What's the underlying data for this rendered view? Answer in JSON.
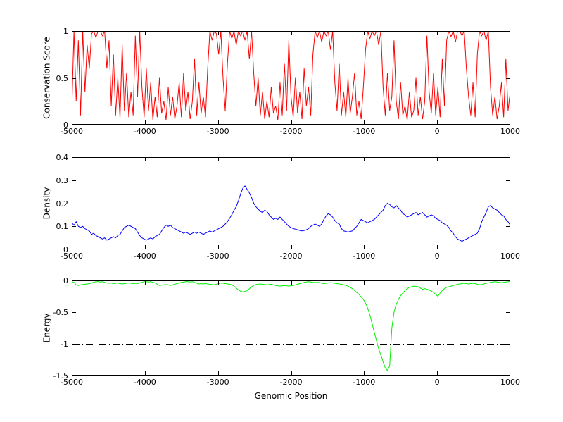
{
  "figure": {
    "background": "#ffffff",
    "axis_color": "#000000"
  },
  "chart_data": [
    {
      "type": "line",
      "title": "",
      "ylabel": "Conservation Score",
      "xlabel": "",
      "legend": null,
      "grid": false,
      "color": "#ff0000",
      "xlim": [
        -5000,
        1000
      ],
      "ylim": [
        0,
        1
      ],
      "xticks": [
        -5000,
        -4000,
        -3000,
        -2000,
        -1000,
        0,
        1000
      ],
      "x_tick_labels": [
        "-5000",
        "-4000",
        "-3000",
        "-2000",
        "-1000",
        "0",
        "1000"
      ],
      "yticks": [
        0,
        0.5,
        1
      ],
      "y_tick_labels": [
        "0",
        "0.5",
        "1"
      ],
      "x_start": -5000,
      "x_step": 30,
      "values": [
        0.15,
        1,
        0.25,
        0.9,
        0.1,
        1,
        0.35,
        0.85,
        0.6,
        0.97,
        1,
        0.93,
        1,
        1,
        0.95,
        1,
        0.6,
        0.9,
        0.2,
        0.75,
        0.1,
        0.5,
        0.07,
        0.85,
        0.15,
        0.55,
        0.08,
        0.35,
        0.1,
        0.95,
        0.3,
        1,
        0.4,
        0.08,
        0.6,
        0.15,
        0.45,
        0.05,
        0.3,
        0.08,
        0.5,
        0.12,
        0.25,
        0.05,
        0.4,
        0.1,
        0.3,
        0.06,
        0.2,
        0.45,
        0.08,
        0.55,
        0.15,
        0.35,
        0.06,
        0.25,
        0.7,
        0.1,
        0.45,
        0.12,
        0.3,
        0.08,
        0.6,
        1,
        0.9,
        1,
        0.97,
        0.75,
        1,
        0.5,
        0.15,
        0.65,
        1,
        0.92,
        1,
        0.85,
        1,
        0.95,
        1,
        0.9,
        1,
        0.7,
        1,
        0.55,
        0.2,
        0.5,
        0.1,
        0.35,
        0.06,
        0.25,
        0.08,
        0.4,
        0.12,
        0.2,
        0.05,
        0.45,
        0.1,
        0.65,
        0.15,
        0.9,
        0.3,
        0.08,
        0.5,
        0.12,
        0.35,
        0.06,
        0.6,
        0.2,
        0.4,
        0.1,
        0.75,
        1,
        0.93,
        1,
        0.88,
        1,
        0.95,
        1,
        0.8,
        1,
        0.45,
        0.15,
        0.65,
        0.1,
        0.35,
        0.08,
        0.5,
        0.12,
        0.3,
        0.55,
        0.1,
        0.25,
        0.06,
        0.4,
        0.8,
        1,
        0.92,
        1,
        0.95,
        1,
        0.85,
        1,
        0.4,
        0.1,
        0.55,
        0.15,
        0.3,
        0.9,
        0.25,
        0.06,
        0.45,
        0.1,
        0.2,
        0.05,
        0.35,
        0.08,
        0.15,
        0.5,
        0.1,
        0.3,
        0.06,
        0.25,
        0.95,
        0.35,
        0.12,
        0.55,
        0.1,
        0.4,
        0.08,
        0.7,
        0.2,
        0.9,
        1,
        0.94,
        1,
        0.88,
        1,
        1,
        0.95,
        1,
        0.6,
        0.3,
        0.1,
        0.45,
        0.08,
        0.75,
        1,
        0.95,
        1,
        0.9,
        1,
        0.4,
        0.1,
        0.3,
        0.06,
        0.2,
        0.45,
        0.08,
        0.7,
        0.15,
        0.35
      ]
    },
    {
      "type": "line",
      "title": "",
      "ylabel": "Density",
      "xlabel": "",
      "legend": null,
      "grid": false,
      "color": "#0000ff",
      "xlim": [
        -5000,
        1000
      ],
      "ylim": [
        0,
        0.4
      ],
      "xticks": [
        -5000,
        -4000,
        -3000,
        -2000,
        -1000,
        0,
        1000
      ],
      "x_tick_labels": [
        "-5000",
        "-4000",
        "-3000",
        "-2000",
        "-1000",
        "0",
        "1000"
      ],
      "yticks": [
        0,
        0.1,
        0.2,
        0.3,
        0.4
      ],
      "y_tick_labels": [
        "0",
        "0.1",
        "0.2",
        "0.3",
        "0.4"
      ],
      "x_start": -5000,
      "x_step": 30,
      "values": [
        0.115,
        0.105,
        0.12,
        0.1,
        0.095,
        0.1,
        0.09,
        0.085,
        0.08,
        0.065,
        0.07,
        0.06,
        0.055,
        0.05,
        0.045,
        0.05,
        0.04,
        0.045,
        0.05,
        0.055,
        0.05,
        0.06,
        0.065,
        0.08,
        0.095,
        0.1,
        0.105,
        0.1,
        0.095,
        0.09,
        0.075,
        0.06,
        0.05,
        0.045,
        0.04,
        0.045,
        0.05,
        0.045,
        0.055,
        0.06,
        0.065,
        0.08,
        0.095,
        0.105,
        0.1,
        0.105,
        0.095,
        0.09,
        0.085,
        0.08,
        0.075,
        0.07,
        0.075,
        0.07,
        0.065,
        0.07,
        0.075,
        0.07,
        0.075,
        0.07,
        0.065,
        0.07,
        0.075,
        0.08,
        0.075,
        0.08,
        0.085,
        0.09,
        0.095,
        0.1,
        0.11,
        0.12,
        0.135,
        0.15,
        0.17,
        0.185,
        0.21,
        0.24,
        0.265,
        0.275,
        0.26,
        0.245,
        0.225,
        0.2,
        0.185,
        0.175,
        0.165,
        0.16,
        0.17,
        0.165,
        0.15,
        0.14,
        0.13,
        0.135,
        0.13,
        0.14,
        0.13,
        0.12,
        0.11,
        0.1,
        0.095,
        0.09,
        0.088,
        0.085,
        0.082,
        0.08,
        0.082,
        0.085,
        0.09,
        0.1,
        0.105,
        0.11,
        0.105,
        0.1,
        0.11,
        0.13,
        0.145,
        0.155,
        0.15,
        0.14,
        0.125,
        0.115,
        0.11,
        0.09,
        0.08,
        0.078,
        0.075,
        0.078,
        0.08,
        0.09,
        0.1,
        0.115,
        0.13,
        0.125,
        0.12,
        0.115,
        0.12,
        0.125,
        0.13,
        0.14,
        0.15,
        0.16,
        0.17,
        0.19,
        0.2,
        0.195,
        0.185,
        0.18,
        0.19,
        0.18,
        0.17,
        0.155,
        0.15,
        0.14,
        0.145,
        0.15,
        0.155,
        0.16,
        0.15,
        0.155,
        0.16,
        0.15,
        0.14,
        0.145,
        0.15,
        0.145,
        0.135,
        0.13,
        0.125,
        0.115,
        0.11,
        0.105,
        0.095,
        0.08,
        0.07,
        0.055,
        0.045,
        0.04,
        0.035,
        0.04,
        0.045,
        0.05,
        0.055,
        0.06,
        0.065,
        0.07,
        0.09,
        0.12,
        0.14,
        0.16,
        0.185,
        0.19,
        0.18,
        0.175,
        0.17,
        0.16,
        0.15,
        0.145,
        0.13,
        0.12,
        0.105
      ]
    },
    {
      "type": "line",
      "title": "",
      "ylabel": "Energy",
      "xlabel": "Genomic Position",
      "legend": null,
      "grid": false,
      "color": "#00ee00",
      "xlim": [
        -5000,
        1000
      ],
      "ylim": [
        -1.5,
        0
      ],
      "xticks": [
        -5000,
        -4000,
        -3000,
        -2000,
        -1000,
        0,
        1000
      ],
      "x_tick_labels": [
        "-5000",
        "-4000",
        "-3000",
        "-2000",
        "-1000",
        "0",
        "1000"
      ],
      "yticks": [
        0,
        -0.5,
        -1,
        -1.5
      ],
      "y_tick_labels": [
        "0",
        "-0.5",
        "-1",
        "-1.5"
      ],
      "reference_line": {
        "y": -1,
        "style": "dash-dot",
        "color": "#000000"
      },
      "x_start": -5000,
      "x_step": 30,
      "values": [
        -0.02,
        -0.03,
        -0.07,
        -0.08,
        -0.07,
        -0.065,
        -0.06,
        -0.055,
        -0.05,
        -0.04,
        -0.03,
        -0.02,
        -0.02,
        -0.025,
        -0.02,
        -0.03,
        -0.04,
        -0.045,
        -0.04,
        -0.05,
        -0.045,
        -0.04,
        -0.05,
        -0.055,
        -0.05,
        -0.045,
        -0.04,
        -0.045,
        -0.05,
        -0.045,
        -0.05,
        -0.04,
        -0.03,
        -0.02,
        -0.02,
        -0.025,
        -0.02,
        -0.03,
        -0.04,
        -0.06,
        -0.08,
        -0.075,
        -0.07,
        -0.065,
        -0.07,
        -0.08,
        -0.07,
        -0.06,
        -0.05,
        -0.04,
        -0.03,
        -0.025,
        -0.02,
        -0.02,
        -0.025,
        -0.02,
        -0.03,
        -0.045,
        -0.055,
        -0.05,
        -0.055,
        -0.05,
        -0.055,
        -0.06,
        -0.065,
        -0.07,
        -0.06,
        -0.05,
        -0.04,
        -0.045,
        -0.05,
        -0.055,
        -0.06,
        -0.07,
        -0.09,
        -0.12,
        -0.15,
        -0.17,
        -0.18,
        -0.175,
        -0.16,
        -0.13,
        -0.1,
        -0.08,
        -0.065,
        -0.06,
        -0.055,
        -0.06,
        -0.065,
        -0.07,
        -0.065,
        -0.06,
        -0.07,
        -0.08,
        -0.085,
        -0.09,
        -0.085,
        -0.08,
        -0.085,
        -0.09,
        -0.085,
        -0.08,
        -0.07,
        -0.06,
        -0.05,
        -0.04,
        -0.03,
        -0.025,
        -0.02,
        -0.025,
        -0.03,
        -0.035,
        -0.03,
        -0.035,
        -0.045,
        -0.05,
        -0.045,
        -0.04,
        -0.035,
        -0.04,
        -0.045,
        -0.05,
        -0.055,
        -0.06,
        -0.07,
        -0.08,
        -0.09,
        -0.11,
        -0.13,
        -0.16,
        -0.19,
        -0.22,
        -0.26,
        -0.3,
        -0.36,
        -0.44,
        -0.55,
        -0.68,
        -0.82,
        -0.95,
        -1.08,
        -1.18,
        -1.28,
        -1.38,
        -1.42,
        -1.35,
        -0.75,
        -0.5,
        -0.38,
        -0.3,
        -0.24,
        -0.2,
        -0.16,
        -0.13,
        -0.11,
        -0.1,
        -0.09,
        -0.095,
        -0.1,
        -0.12,
        -0.14,
        -0.13,
        -0.14,
        -0.15,
        -0.17,
        -0.19,
        -0.22,
        -0.25,
        -0.2,
        -0.16,
        -0.13,
        -0.11,
        -0.1,
        -0.09,
        -0.08,
        -0.07,
        -0.06,
        -0.055,
        -0.05,
        -0.045,
        -0.05,
        -0.055,
        -0.05,
        -0.045,
        -0.05,
        -0.06,
        -0.07,
        -0.065,
        -0.055,
        -0.045,
        -0.04,
        -0.03,
        -0.025,
        -0.02,
        -0.025,
        -0.03,
        -0.035,
        -0.03,
        -0.025,
        -0.02,
        -0.02
      ]
    }
  ]
}
